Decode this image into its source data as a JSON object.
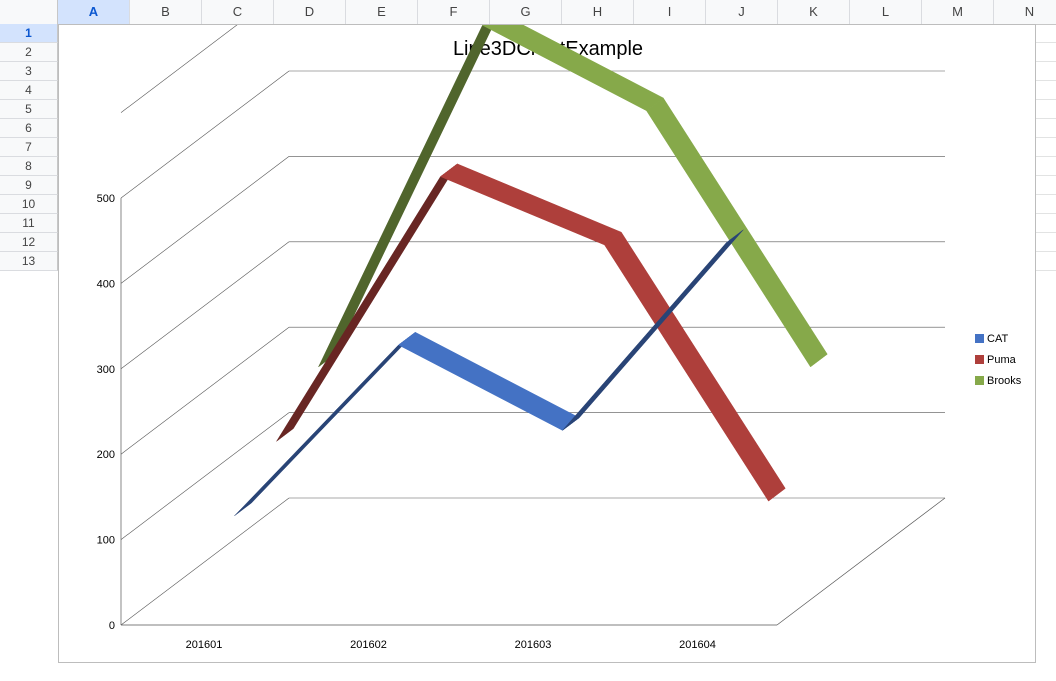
{
  "spreadsheet": {
    "columns": [
      "A",
      "B",
      "C",
      "D",
      "E",
      "F",
      "G",
      "H",
      "I",
      "J",
      "K",
      "L",
      "M",
      "N"
    ],
    "rows": [
      "1",
      "2",
      "3",
      "4",
      "5",
      "6",
      "7",
      "8",
      "9",
      "10",
      "11",
      "12",
      "13"
    ],
    "selected_cell": "A1"
  },
  "chart_data": {
    "type": "line",
    "subtype": "3d-line",
    "title": "Line3DChartExample",
    "categories": [
      "201601",
      "201602",
      "201603",
      "201604"
    ],
    "series": [
      {
        "name": "CAT",
        "color": "#4472c4",
        "values": [
          100,
          300,
          200,
          420
        ]
      },
      {
        "name": "Puma",
        "color": "#ae3f3b",
        "values": [
          150,
          460,
          380,
          80
        ]
      },
      {
        "name": "Brooks",
        "color": "#86a94a",
        "values": [
          200,
          600,
          500,
          200
        ]
      }
    ],
    "y_ticks": [
      "0",
      "100",
      "200",
      "300",
      "400",
      "500"
    ],
    "ylim": [
      0,
      500
    ],
    "grid": true,
    "legend_position": "right"
  }
}
